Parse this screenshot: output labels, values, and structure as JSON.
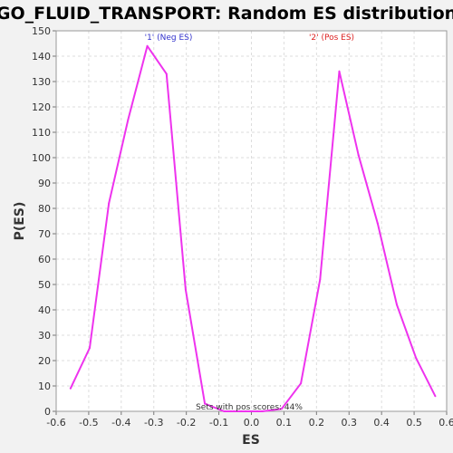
{
  "chart_data": {
    "type": "line",
    "title": "GO_FLUID_TRANSPORT: Random ES distribution",
    "xlabel": "ES",
    "ylabel": "P(ES)",
    "xlim": [
      -0.6,
      0.6
    ],
    "ylim": [
      0,
      150
    ],
    "x_ticks": [
      "-0.6",
      "-0.5",
      "-0.4",
      "-0.3",
      "-0.2",
      "-0.1",
      "0.0",
      "0.1",
      "0.2",
      "0.3",
      "0.4",
      "0.5",
      "0.6"
    ],
    "y_ticks": [
      "0",
      "10",
      "20",
      "30",
      "40",
      "50",
      "60",
      "70",
      "80",
      "90",
      "100",
      "110",
      "120",
      "130",
      "140",
      "150"
    ],
    "grid": true,
    "series": [
      {
        "color": "#ee33ee",
        "x": [
          -0.556,
          -0.497,
          -0.438,
          -0.379,
          -0.32,
          -0.261,
          -0.202,
          -0.143,
          -0.084,
          -0.025,
          0.034,
          0.093,
          0.152,
          0.211,
          0.27,
          0.329,
          0.388,
          0.447,
          0.506,
          0.565
        ],
        "y": [
          9,
          25,
          82,
          115,
          144,
          133,
          48,
          3,
          0,
          0,
          0,
          1,
          11,
          52,
          134,
          101,
          74,
          42,
          21,
          6
        ]
      }
    ],
    "annotations": {
      "neg_label": "'1' (Neg ES)",
      "pos_label": "'2' (Pos ES)",
      "neg_color": "#3333cc",
      "pos_color": "#dd2222",
      "footer": "Sets with pos scores: 44%"
    }
  }
}
